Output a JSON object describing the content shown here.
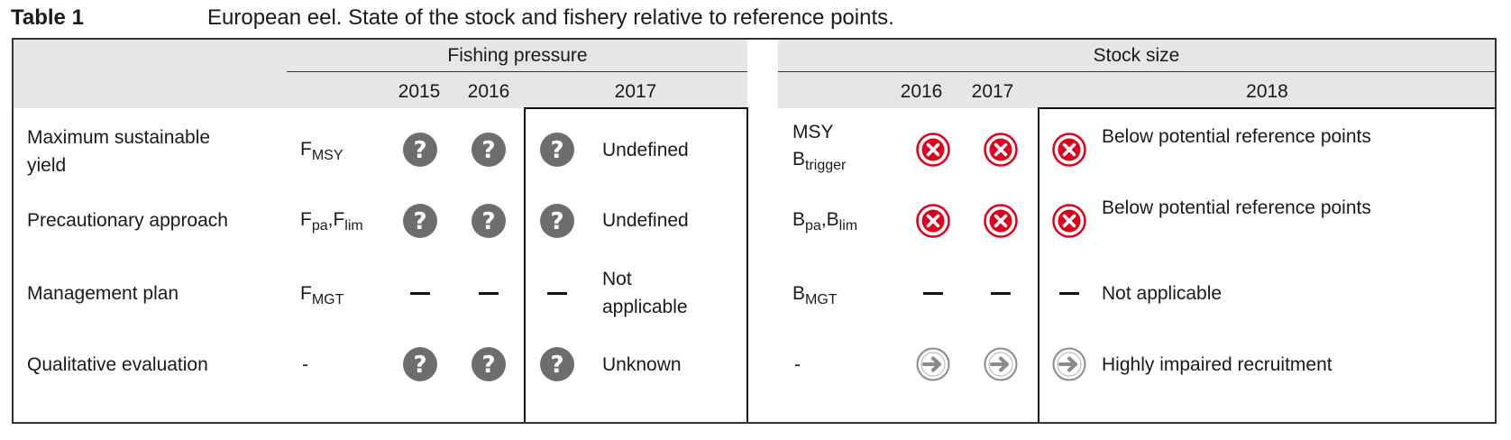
{
  "table_label": "Table 1",
  "caption": "European eel. State of the stock and fishery relative to reference points.",
  "groups": {
    "fishing": "Fishing pressure",
    "stock": "Stock size"
  },
  "years": {
    "fishing": [
      "2015",
      "2016",
      "2017"
    ],
    "stock": [
      "2016",
      "2017",
      "2018"
    ]
  },
  "rows": [
    {
      "label": "Maximum sustainable yield",
      "f_ref": "F",
      "f_ref_sub": "MSY",
      "f_status": "Undefined",
      "b_ref_line1": "MSY",
      "b_ref": "B",
      "b_ref_sub": "trigger",
      "b_status": "Below potential reference points",
      "f_icon": "question-circle-icon",
      "b_icon": "red-x-circle-icon"
    },
    {
      "label": "Precautionary approach",
      "f_ref": "F",
      "f_ref_sub": "pa",
      "f_ref2": ",F",
      "f_ref2_sub": "lim",
      "f_status": "Undefined",
      "b_ref": "B",
      "b_ref_sub": "pa",
      "b_ref2": ",B",
      "b_ref2_sub": "lim",
      "b_status": "Below potential reference points",
      "f_icon": "question-circle-icon",
      "b_icon": "red-x-circle-icon"
    },
    {
      "label": "Management plan",
      "f_ref": "F",
      "f_ref_sub": "MGT",
      "f_status": "Not applicable",
      "b_ref": "B",
      "b_ref_sub": "MGT",
      "b_status": "Not applicable",
      "f_icon": "dash-icon",
      "b_icon": "dash-icon"
    },
    {
      "label": "Qualitative evaluation",
      "f_ref": "-",
      "f_status": "Unknown",
      "b_ref": "-",
      "b_status": "Highly impaired recruitment",
      "f_icon": "question-circle-icon",
      "b_icon": "grey-arrow-circle-icon"
    }
  ],
  "colors": {
    "header_bg": "#e6e6e6",
    "question_icon": "#6d6d6d",
    "red_icon": "#e0001b",
    "arrow_icon": "#8a8a8a"
  }
}
